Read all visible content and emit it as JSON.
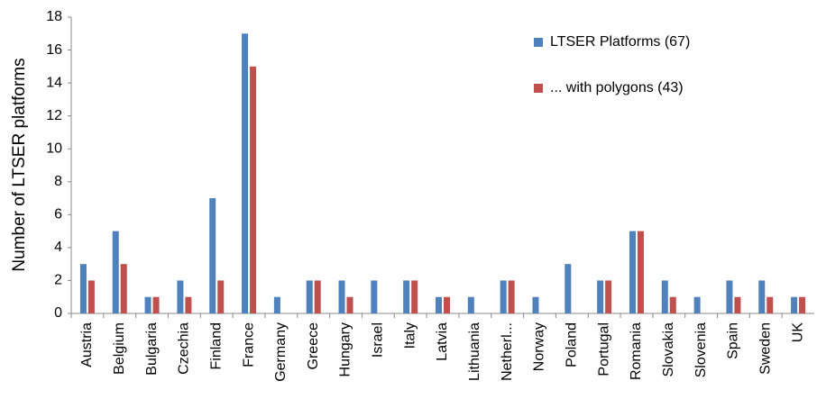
{
  "chart_data": {
    "type": "bar",
    "y_label": "Number of LTSER platforms",
    "categories": [
      "Austria",
      "Belgium",
      "Bulgaria",
      "Czechia",
      "Finland",
      "France",
      "Germany",
      "Greece",
      "Hungary",
      "Israel",
      "Italy",
      "Latvia",
      "Lithuania",
      "Netherl...",
      "Norway",
      "Poland",
      "Portugal",
      "Romania",
      "Slovakia",
      "Slovenia",
      "Spain",
      "Sweden",
      "UK"
    ],
    "series": [
      {
        "name": "LTSER Platforms (67)",
        "color": "#4f81bd",
        "values": [
          3,
          5,
          1,
          2,
          7,
          17,
          1,
          2,
          2,
          2,
          2,
          1,
          1,
          2,
          1,
          3,
          2,
          5,
          2,
          1,
          2,
          2,
          1
        ]
      },
      {
        "name": "... with polygons (43)",
        "color": "#c0504d",
        "values": [
          2,
          3,
          1,
          1,
          2,
          15,
          0,
          2,
          1,
          0,
          2,
          1,
          0,
          2,
          0,
          0,
          2,
          5,
          1,
          0,
          1,
          1,
          1
        ]
      }
    ],
    "ylim": [
      0,
      18
    ],
    "yticks": [
      0,
      2,
      4,
      6,
      8,
      10,
      12,
      14,
      16,
      18
    ],
    "grid": false,
    "legend": "upper-right"
  }
}
